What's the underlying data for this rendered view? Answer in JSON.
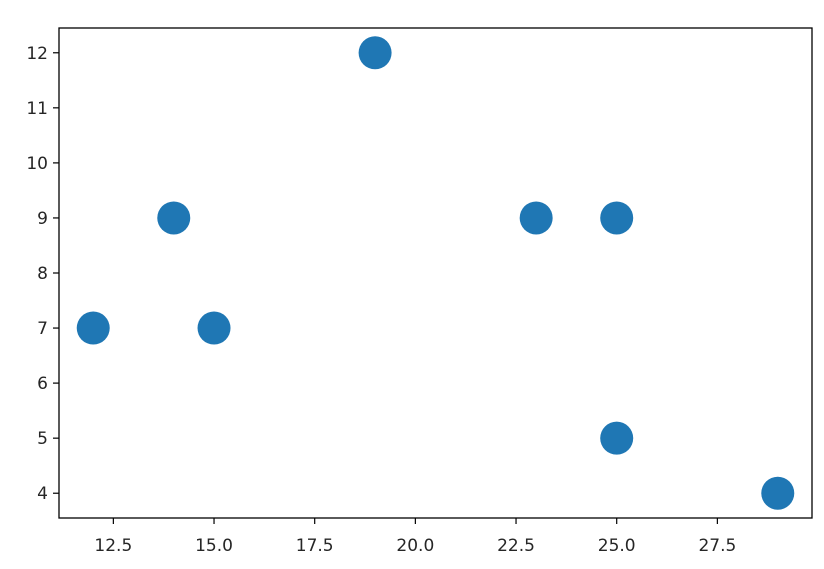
{
  "chart_data": {
    "type": "scatter",
    "title": "",
    "xlabel": "",
    "ylabel": "",
    "xlim": [
      11.15,
      29.85
    ],
    "ylim": [
      3.55,
      12.45
    ],
    "x_ticks": [
      "12.5",
      "15.0",
      "17.5",
      "20.0",
      "22.5",
      "25.0",
      "27.5"
    ],
    "y_ticks": [
      "4",
      "5",
      "6",
      "7",
      "8",
      "9",
      "10",
      "11",
      "12"
    ],
    "grid": false,
    "legend": "none",
    "series": [
      {
        "color": "#1f77b4",
        "points": [
          {
            "x": 12,
            "y": 7
          },
          {
            "x": 14,
            "y": 9
          },
          {
            "x": 15,
            "y": 7
          },
          {
            "x": 19,
            "y": 12
          },
          {
            "x": 23,
            "y": 9
          },
          {
            "x": 25,
            "y": 9
          },
          {
            "x": 25,
            "y": 5
          },
          {
            "x": 29,
            "y": 4
          }
        ]
      }
    ]
  }
}
